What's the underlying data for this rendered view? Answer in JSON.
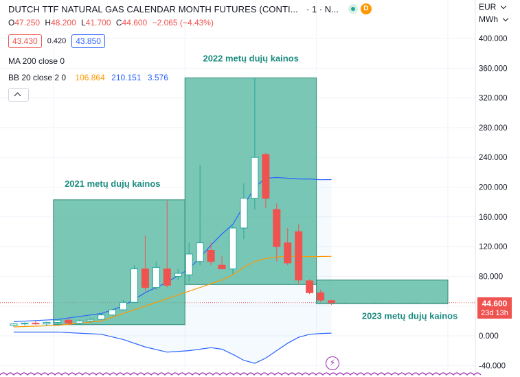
{
  "header": {
    "symbol": "DUTCH TTF NATURAL GAS CALENDAR MONTH FUTURES (CONTI...",
    "meta": "· 1 · N...",
    "badge": "D"
  },
  "ohlc": {
    "open_label": "O",
    "open": "47.250",
    "high_label": "H",
    "high": "48.200",
    "low_label": "L",
    "low": "41.700",
    "close_label": "C",
    "close": "44.600",
    "change": "−2.065 (−4.43%)"
  },
  "quote": {
    "bid": "43.430",
    "spread": "0.420",
    "ask": "43.850"
  },
  "indicators": {
    "ma": "MA 200 close 0",
    "bb_label": "BB 20 close 2 0",
    "bb_middle": "106.864",
    "bb_upper": "210.151",
    "bb_lower": "3.576"
  },
  "axis": {
    "currency": "EUR",
    "unit": "MWh",
    "current_price": "44.600",
    "countdown": "23d 13h"
  },
  "colors": {
    "up": "#26a69a",
    "down": "#ef5350",
    "bb": "#2962ff",
    "ma": "#ff9800",
    "annotation_box": "#59b9a2",
    "annotation_text": "#1c8c80"
  },
  "chart_data": {
    "type": "candlestick",
    "ylim": [
      -50,
      420
    ],
    "yticks": [
      "400.000",
      "360.000",
      "320.000",
      "280.000",
      "240.000",
      "200.000",
      "160.000",
      "120.000",
      "80.000",
      "40.000",
      "0.000",
      "-40.000"
    ],
    "annotations": [
      {
        "text": "2021 metų dujų kainos",
        "from_index": 4,
        "to_index": 16,
        "y_from": 15,
        "y_to": 183
      },
      {
        "text": "2022 metų dujų kainos",
        "from_index": 16,
        "to_index": 28,
        "y_from": 69,
        "y_to": 347
      },
      {
        "text": "2023 metų dujų kainos",
        "from_index": 28,
        "to_index": 40,
        "y_from": 43,
        "y_to": 75
      }
    ],
    "candles": [
      {
        "o": 14,
        "h": 17,
        "l": 12,
        "c": 16
      },
      {
        "o": 16,
        "h": 18,
        "l": 14,
        "c": 17
      },
      {
        "o": 17,
        "h": 20,
        "l": 15,
        "c": 16
      },
      {
        "o": 16,
        "h": 19,
        "l": 13,
        "c": 18
      },
      {
        "o": 18,
        "h": 22,
        "l": 16,
        "c": 21
      },
      {
        "o": 21,
        "h": 23,
        "l": 16,
        "c": 17
      },
      {
        "o": 17,
        "h": 21,
        "l": 15,
        "c": 20
      },
      {
        "o": 20,
        "h": 24,
        "l": 18,
        "c": 22
      },
      {
        "o": 22,
        "h": 30,
        "l": 21,
        "c": 28
      },
      {
        "o": 28,
        "h": 36,
        "l": 27,
        "c": 35
      },
      {
        "o": 35,
        "h": 48,
        "l": 34,
        "c": 45
      },
      {
        "o": 45,
        "h": 95,
        "l": 44,
        "c": 90
      },
      {
        "o": 90,
        "h": 135,
        "l": 60,
        "c": 65
      },
      {
        "o": 65,
        "h": 100,
        "l": 62,
        "c": 92
      },
      {
        "o": 90,
        "h": 182,
        "l": 65,
        "c": 68
      },
      {
        "o": 80,
        "h": 90,
        "l": 75,
        "c": 84
      },
      {
        "o": 82,
        "h": 125,
        "l": 73,
        "c": 110
      },
      {
        "o": 100,
        "h": 230,
        "l": 95,
        "c": 125
      },
      {
        "o": 115,
        "h": 125,
        "l": 95,
        "c": 100
      },
      {
        "o": 95,
        "h": 107,
        "l": 90,
        "c": 90
      },
      {
        "o": 90,
        "h": 148,
        "l": 83,
        "c": 145
      },
      {
        "o": 145,
        "h": 205,
        "l": 130,
        "c": 185
      },
      {
        "o": 185,
        "h": 347,
        "l": 170,
        "c": 240
      },
      {
        "o": 244,
        "h": 246,
        "l": 172,
        "c": 185
      },
      {
        "o": 170,
        "h": 178,
        "l": 100,
        "c": 120
      },
      {
        "o": 125,
        "h": 145,
        "l": 95,
        "c": 98
      },
      {
        "o": 140,
        "h": 150,
        "l": 70,
        "c": 75
      },
      {
        "o": 74,
        "h": 76,
        "l": 56,
        "c": 58
      },
      {
        "o": 58,
        "h": 62,
        "l": 45,
        "c": 48
      },
      {
        "o": 47.25,
        "h": 48.2,
        "l": 41.7,
        "c": 44.6
      }
    ],
    "bb_upper": [
      [
        0,
        19
      ],
      [
        4,
        22
      ],
      [
        8,
        30
      ],
      [
        10,
        40
      ],
      [
        12,
        58
      ],
      [
        14,
        72
      ],
      [
        16,
        90
      ],
      [
        17,
        105
      ],
      [
        18,
        122
      ],
      [
        19,
        137
      ],
      [
        20,
        150
      ],
      [
        21,
        175
      ],
      [
        22,
        200
      ],
      [
        23,
        212
      ],
      [
        24,
        213
      ],
      [
        25,
        212
      ],
      [
        26,
        211
      ],
      [
        27,
        211
      ],
      [
        28,
        210
      ],
      [
        29,
        210.151
      ]
    ],
    "bb_middle": [
      [
        0,
        12
      ],
      [
        4,
        14
      ],
      [
        8,
        20
      ],
      [
        10,
        30
      ],
      [
        12,
        40
      ],
      [
        14,
        50
      ],
      [
        16,
        60
      ],
      [
        17,
        65
      ],
      [
        18,
        70
      ],
      [
        19,
        75
      ],
      [
        20,
        82
      ],
      [
        21,
        92
      ],
      [
        22,
        100
      ],
      [
        23,
        104
      ],
      [
        24,
        106
      ],
      [
        25,
        107
      ],
      [
        26,
        107
      ],
      [
        27,
        106.5
      ],
      [
        28,
        106.7
      ],
      [
        29,
        106.864
      ]
    ],
    "bb_lower": [
      [
        0,
        5
      ],
      [
        4,
        5
      ],
      [
        8,
        2
      ],
      [
        10,
        -5
      ],
      [
        12,
        -15
      ],
      [
        14,
        -22
      ],
      [
        16,
        -20
      ],
      [
        17,
        -18
      ],
      [
        18,
        -16
      ],
      [
        19,
        -18
      ],
      [
        20,
        -25
      ],
      [
        21,
        -33
      ],
      [
        22,
        -37
      ],
      [
        23,
        -30
      ],
      [
        24,
        -20
      ],
      [
        25,
        -10
      ],
      [
        26,
        -2
      ],
      [
        27,
        2
      ],
      [
        28,
        3
      ],
      [
        29,
        3.576
      ]
    ]
  }
}
